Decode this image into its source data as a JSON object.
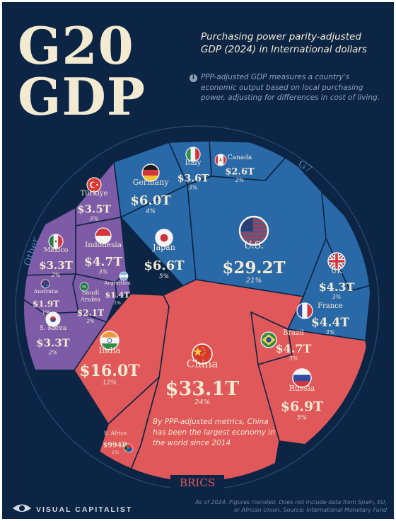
{
  "title_line1": "G20",
  "title_line2": "GDP",
  "subtitle": "Purchasing power parity-adjusted GDP (2024) in International dollars",
  "note": "PPP-adjusted GDP measures a country's economic output based on local purchasing power, adjusting for differences in cost of living.",
  "annotation": "By PPP-adjusted metrics, China has been the largest economy in the world since 2014",
  "source": "As of 2024. Figures rounded. Does not include data from Spain, EU, or African Union. Source: International Monetary Fund",
  "brand": "VISUAL CAPITALIST",
  "colors": {
    "background": "#0c2545",
    "G7": "#2a69a8",
    "BRICS": "#e0585a",
    "Other": "#7d5ba6",
    "cell_border": "#0c2545",
    "text": "#f3ead2"
  },
  "chart_data": {
    "type": "voronoi treemap",
    "unit": "International dollars (PPP)",
    "groups": [
      {
        "name": "G7",
        "countries": [
          {
            "name": "U.S.",
            "value": "$29.2T",
            "share": "21%",
            "flag": "us-flag"
          },
          {
            "name": "Japan",
            "value": "$6.6T",
            "share": "5%",
            "flag": "japan-flag"
          },
          {
            "name": "Germany",
            "value": "$6.0T",
            "share": "4%",
            "flag": "germany-flag"
          },
          {
            "name": "France",
            "value": "$4.4T",
            "share": "3%",
            "flag": "france-flag"
          },
          {
            "name": "UK",
            "value": "$4.3T",
            "share": "3%",
            "flag": "uk-flag"
          },
          {
            "name": "Italy",
            "value": "$3.6T",
            "share": "3%",
            "flag": "italy-flag"
          },
          {
            "name": "Canada",
            "value": "$2.6T",
            "share": "2%",
            "flag": "canada-flag"
          }
        ]
      },
      {
        "name": "BRICS",
        "countries": [
          {
            "name": "China",
            "value": "$33.1T",
            "share": "24%",
            "flag": "china-flag"
          },
          {
            "name": "India",
            "value": "$16.0T",
            "share": "12%",
            "flag": "india-flag"
          },
          {
            "name": "Russia",
            "value": "$6.9T",
            "share": "5%",
            "flag": "russia-flag"
          },
          {
            "name": "Brazil",
            "value": "$4.7T",
            "share": "3%",
            "flag": "brazil-flag"
          },
          {
            "name": "S. Africa",
            "value": "$994B",
            "share": "1%",
            "flag": "south-africa-flag"
          }
        ]
      },
      {
        "name": "Other",
        "countries": [
          {
            "name": "Indonesia",
            "value": "$4.7T",
            "share": "3%",
            "flag": "indonesia-flag"
          },
          {
            "name": "Türkiye",
            "value": "$3.5T",
            "share": "3%",
            "flag": "turkey-flag"
          },
          {
            "name": "Mexico",
            "value": "$3.3T",
            "share": "2%",
            "flag": "mexico-flag"
          },
          {
            "name": "S. Korea",
            "value": "$3.3T",
            "share": "2%",
            "flag": "south-korea-flag"
          },
          {
            "name": "Saudi Arabia",
            "value": "$2.1T",
            "share": "2%",
            "flag": "saudi-arabia-flag"
          },
          {
            "name": "Australia",
            "value": "$1.9T",
            "share": "1%",
            "flag": "australia-flag"
          },
          {
            "name": "Argentina",
            "value": "$1.4T",
            "share": "1%",
            "flag": "argentina-flag"
          }
        ]
      }
    ]
  }
}
